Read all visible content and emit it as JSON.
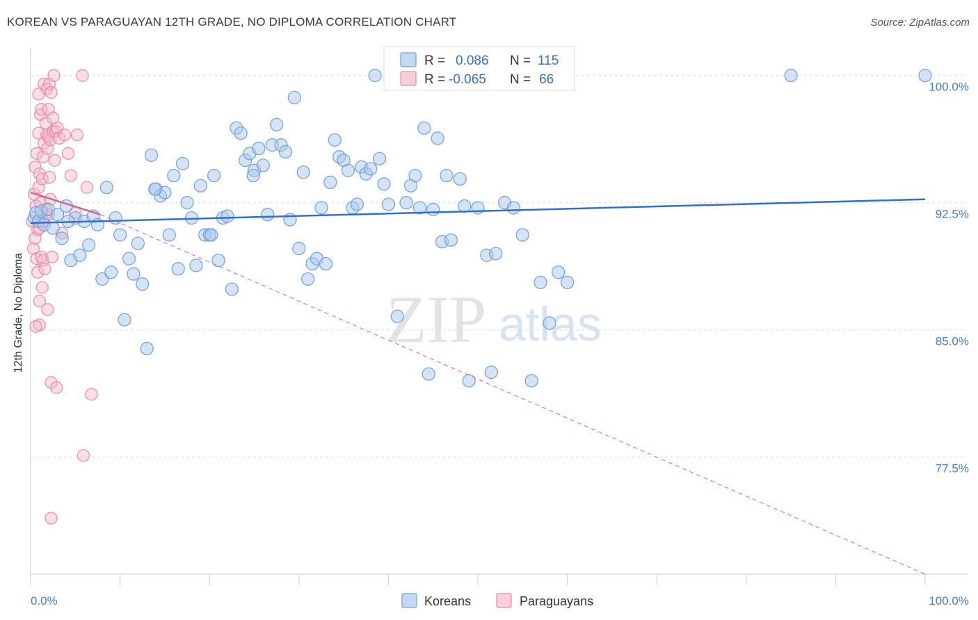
{
  "title": "KOREAN VS PARAGUAYAN 12TH GRADE, NO DIPLOMA CORRELATION CHART",
  "source": "Source: ZipAtlas.com",
  "colors": {
    "korean_fill": "#a9c8ee",
    "korean_stroke": "#6f9fd8",
    "korean_line": "#2f6fd0",
    "paraguayan_fill": "#f5b9ca",
    "paraguayan_stroke": "#e88aa6",
    "paraguayan_line": "#e0608a",
    "grid": "#dddddd",
    "tick_label": "#4a7cc9"
  },
  "legend": {
    "rows": [
      {
        "r_label": "R =",
        "r_value": "0.086",
        "n_label": "N =",
        "n_value": "115"
      },
      {
        "r_label": "R =",
        "r_value": "-0.065",
        "n_label": "N =",
        "n_value": "66"
      }
    ]
  },
  "chart_data": {
    "type": "scatter",
    "title": "KOREAN VS PARAGUAYAN 12TH GRADE, NO DIPLOMA CORRELATION CHART",
    "xlabel": "",
    "ylabel": "12th Grade, No Diploma",
    "xlim": [
      0,
      100
    ],
    "ylim": [
      70.6,
      101.5
    ],
    "x_tick_labels": [
      "0.0%",
      "100.0%"
    ],
    "y_ticks": [
      77.5,
      85.0,
      92.5,
      100.0
    ],
    "y_tick_labels": [
      "77.5%",
      "85.0%",
      "92.5%",
      "100.0%"
    ],
    "grid": true,
    "legend_placement": "top-center and bottom",
    "series": [
      {
        "name": "Koreans",
        "r": 0.086,
        "n": 115,
        "trend": {
          "x": [
            0,
            100
          ],
          "y": [
            91.3,
            92.7
          ]
        },
        "points": [
          [
            0.4,
            91.6
          ],
          [
            0.6,
            91.9
          ],
          [
            0.9,
            91.4
          ],
          [
            1.2,
            92.0
          ],
          [
            1.5,
            91.2
          ],
          [
            2.0,
            92.1
          ],
          [
            2.5,
            91.0
          ],
          [
            3.0,
            91.8
          ],
          [
            3.5,
            90.4
          ],
          [
            4.0,
            92.3
          ],
          [
            4.5,
            89.1
          ],
          [
            5.0,
            91.6
          ],
          [
            5.5,
            89.4
          ],
          [
            6.0,
            91.4
          ],
          [
            6.5,
            90.0
          ],
          [
            7.0,
            91.7
          ],
          [
            7.5,
            91.2
          ],
          [
            8.0,
            88.0
          ],
          [
            8.5,
            93.4
          ],
          [
            9.0,
            88.4
          ],
          [
            9.5,
            91.6
          ],
          [
            10.0,
            90.6
          ],
          [
            10.5,
            85.6
          ],
          [
            11.0,
            89.2
          ],
          [
            11.5,
            88.3
          ],
          [
            12.0,
            90.1
          ],
          [
            12.5,
            87.7
          ],
          [
            13.0,
            83.9
          ],
          [
            13.5,
            95.3
          ],
          [
            14.0,
            93.3
          ],
          [
            14.5,
            92.9
          ],
          [
            15.0,
            93.1
          ],
          [
            15.5,
            90.6
          ],
          [
            16.0,
            94.1
          ],
          [
            16.5,
            88.6
          ],
          [
            17.0,
            94.8
          ],
          [
            17.5,
            92.5
          ],
          [
            18.0,
            91.6
          ],
          [
            18.5,
            88.8
          ],
          [
            19.0,
            93.5
          ],
          [
            19.5,
            90.6
          ],
          [
            20.0,
            90.6
          ],
          [
            20.5,
            94.1
          ],
          [
            21.0,
            89.1
          ],
          [
            21.5,
            91.6
          ],
          [
            22.0,
            91.7
          ],
          [
            22.5,
            87.4
          ],
          [
            23.0,
            96.9
          ],
          [
            23.5,
            96.6
          ],
          [
            24.0,
            95.0
          ],
          [
            24.5,
            95.4
          ],
          [
            25.0,
            94.4
          ],
          [
            25.5,
            95.7
          ],
          [
            26.0,
            94.7
          ],
          [
            26.5,
            91.8
          ],
          [
            27.0,
            95.9
          ],
          [
            27.5,
            97.1
          ],
          [
            28.0,
            95.9
          ],
          [
            28.5,
            95.5
          ],
          [
            29.0,
            91.5
          ],
          [
            29.5,
            98.7
          ],
          [
            30.0,
            89.8
          ],
          [
            30.5,
            94.3
          ],
          [
            31.0,
            88.0
          ],
          [
            31.5,
            88.9
          ],
          [
            32.0,
            89.2
          ],
          [
            32.5,
            92.2
          ],
          [
            33.0,
            88.9
          ],
          [
            33.5,
            93.7
          ],
          [
            34.0,
            96.2
          ],
          [
            34.5,
            95.2
          ],
          [
            35.0,
            95.0
          ],
          [
            35.5,
            94.4
          ],
          [
            36.0,
            92.2
          ],
          [
            36.5,
            92.4
          ],
          [
            37.0,
            94.6
          ],
          [
            37.5,
            94.2
          ],
          [
            38.0,
            94.5
          ],
          [
            38.5,
            100.0
          ],
          [
            39.0,
            95.1
          ],
          [
            39.5,
            93.6
          ],
          [
            40.0,
            92.4
          ],
          [
            41.0,
            85.8
          ],
          [
            42.0,
            92.5
          ],
          [
            42.5,
            93.5
          ],
          [
            43.0,
            94.1
          ],
          [
            43.5,
            92.2
          ],
          [
            44.0,
            96.9
          ],
          [
            44.5,
            82.4
          ],
          [
            45.0,
            92.1
          ],
          [
            45.5,
            96.3
          ],
          [
            46.0,
            90.2
          ],
          [
            46.5,
            94.1
          ],
          [
            47.0,
            90.3
          ],
          [
            48.0,
            93.9
          ],
          [
            48.5,
            92.3
          ],
          [
            49.0,
            82.0
          ],
          [
            50.0,
            92.2
          ],
          [
            51.0,
            89.4
          ],
          [
            51.5,
            82.5
          ],
          [
            52.0,
            89.5
          ],
          [
            53.0,
            92.5
          ],
          [
            54.0,
            92.2
          ],
          [
            55.0,
            90.6
          ],
          [
            56.0,
            82.0
          ],
          [
            57.0,
            87.8
          ],
          [
            58.0,
            85.4
          ],
          [
            59.0,
            88.4
          ],
          [
            60.0,
            87.8
          ],
          [
            85.0,
            100.0
          ],
          [
            100.0,
            100.0
          ],
          [
            4.2,
            91.4
          ],
          [
            20.2,
            90.6
          ],
          [
            13.9,
            93.3
          ],
          [
            24.9,
            94.1
          ]
        ]
      },
      {
        "name": "Paraguayans",
        "r": -0.065,
        "n": 66,
        "trend_solid": {
          "x": [
            0,
            7.8
          ],
          "y": [
            93.1,
            91.8
          ]
        },
        "trend_dashed": {
          "x": [
            7.8,
            100
          ],
          "y": [
            91.8,
            70.6
          ]
        },
        "points": [
          [
            0.2,
            91.4
          ],
          [
            0.3,
            89.8
          ],
          [
            0.4,
            93.0
          ],
          [
            0.5,
            90.4
          ],
          [
            0.5,
            94.6
          ],
          [
            0.6,
            92.3
          ],
          [
            0.7,
            89.2
          ],
          [
            0.7,
            95.4
          ],
          [
            0.8,
            90.9
          ],
          [
            0.8,
            88.4
          ],
          [
            0.9,
            93.4
          ],
          [
            0.9,
            96.6
          ],
          [
            1.0,
            86.7
          ],
          [
            1.0,
            85.3
          ],
          [
            1.0,
            91.0
          ],
          [
            1.0,
            94.2
          ],
          [
            1.1,
            97.7
          ],
          [
            1.1,
            92.5
          ],
          [
            1.2,
            98.0
          ],
          [
            1.2,
            89.3
          ],
          [
            1.3,
            93.9
          ],
          [
            1.3,
            87.5
          ],
          [
            1.4,
            89.1
          ],
          [
            1.4,
            95.2
          ],
          [
            1.5,
            99.5
          ],
          [
            1.5,
            96.0
          ],
          [
            1.6,
            91.7
          ],
          [
            1.6,
            88.6
          ],
          [
            1.7,
            92.1
          ],
          [
            1.7,
            97.2
          ],
          [
            1.8,
            96.5
          ],
          [
            1.8,
            99.2
          ],
          [
            1.9,
            95.7
          ],
          [
            1.9,
            86.2
          ],
          [
            2.0,
            96.4
          ],
          [
            2.0,
            91.8
          ],
          [
            2.0,
            98.0
          ],
          [
            2.1,
            94.0
          ],
          [
            2.1,
            99.5
          ],
          [
            2.2,
            92.7
          ],
          [
            2.2,
            96.2
          ],
          [
            2.3,
            81.9
          ],
          [
            2.3,
            99.0
          ],
          [
            2.4,
            89.3
          ],
          [
            2.5,
            97.5
          ],
          [
            2.5,
            96.7
          ],
          [
            2.6,
            100.0
          ],
          [
            2.7,
            95.0
          ],
          [
            2.8,
            96.7
          ],
          [
            2.9,
            81.6
          ],
          [
            3.0,
            96.9
          ],
          [
            3.2,
            96.3
          ],
          [
            3.5,
            90.7
          ],
          [
            3.8,
            96.5
          ],
          [
            4.2,
            95.4
          ],
          [
            4.5,
            94.1
          ],
          [
            5.0,
            91.9
          ],
          [
            5.2,
            96.5
          ],
          [
            5.8,
            100.0
          ],
          [
            6.3,
            93.4
          ],
          [
            6.8,
            81.2
          ],
          [
            5.9,
            77.6
          ],
          [
            2.3,
            73.9
          ],
          [
            0.6,
            85.2
          ],
          [
            1.4,
            91.4
          ],
          [
            0.9,
            98.9
          ]
        ]
      }
    ]
  },
  "bottom_legend": [
    {
      "label": "Koreans"
    },
    {
      "label": "Paraguayans"
    }
  ],
  "watermark": {
    "zip": "ZIP",
    "atlas": "atlas"
  }
}
